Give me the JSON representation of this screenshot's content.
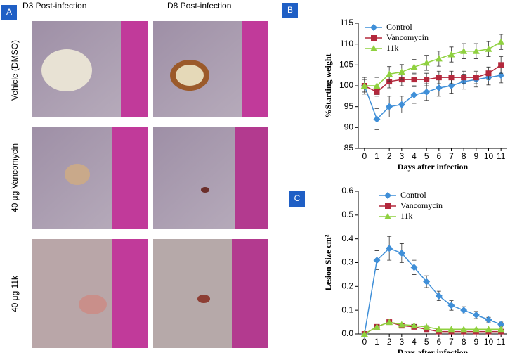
{
  "figure": {
    "panels": [
      "A",
      "B",
      "C"
    ],
    "columns": [
      "D3 Post-infection",
      "D8 Post-infection"
    ],
    "rows": [
      "Vehicle (DMSO)",
      "40 μg Vancomycin",
      "40 μg 11k"
    ]
  },
  "chart_data": [
    {
      "type": "line",
      "ylabel": "%Starting weight",
      "xlabel": "Days after infection",
      "x": [
        0,
        1,
        2,
        3,
        4,
        5,
        6,
        7,
        8,
        9,
        10,
        11
      ],
      "xlim": [
        -0.5,
        11.5
      ],
      "xticks": [
        0,
        1,
        2,
        3,
        4,
        5,
        6,
        7,
        8,
        9,
        10,
        11
      ],
      "ylim": [
        85,
        115
      ],
      "yticks": [
        85,
        90,
        95,
        100,
        105,
        110,
        115
      ],
      "legend": "upper left",
      "series": [
        {
          "name": "Control",
          "color": "#3f8fd8",
          "marker": "diamond",
          "values": [
            100,
            92,
            95,
            95.5,
            97.8,
            98.5,
            99.5,
            100,
            101,
            101.5,
            102,
            102.5
          ],
          "errors": [
            1.5,
            2.5,
            2.5,
            2,
            2,
            2,
            2,
            1.8,
            1.8,
            1.8,
            1.8,
            1.8
          ]
        },
        {
          "name": "Vancomycin",
          "color": "#b3283c",
          "marker": "square",
          "values": [
            100,
            98.5,
            101,
            101.5,
            101.5,
            101.5,
            102,
            102,
            102,
            102,
            103,
            105
          ],
          "errors": [
            1.5,
            1,
            1.5,
            1.5,
            1.5,
            1.5,
            1.5,
            1.5,
            1.5,
            1.5,
            1.5,
            2
          ]
        },
        {
          "name": "11k",
          "color": "#8fd13f",
          "marker": "triangle",
          "values": [
            100,
            100,
            102.8,
            103.3,
            104.5,
            105.5,
            106.5,
            107.5,
            108.3,
            108.3,
            108.8,
            110.5
          ],
          "errors": [
            2,
            2,
            1.8,
            1.8,
            1.8,
            1.8,
            1.8,
            1.8,
            1.8,
            1.8,
            1.8,
            1.8
          ]
        }
      ]
    },
    {
      "type": "line",
      "ylabel": "Lesion Size cm²",
      "xlabel": "Days after infection",
      "x": [
        0,
        1,
        2,
        3,
        4,
        5,
        6,
        7,
        8,
        9,
        10,
        11
      ],
      "xlim": [
        -0.5,
        11.5
      ],
      "xticks": [
        0,
        1,
        2,
        3,
        4,
        5,
        6,
        7,
        8,
        9,
        10,
        11
      ],
      "ylim": [
        0,
        0.6
      ],
      "yticks": [
        {
          "value": 0,
          "label": "0.0"
        },
        0.1,
        0.2,
        0.3,
        0.4,
        0.5,
        0.6
      ],
      "legend": "upper center",
      "series": [
        {
          "name": "Control",
          "color": "#3f8fd8",
          "marker": "diamond",
          "values": [
            0,
            0.31,
            0.36,
            0.34,
            0.28,
            0.22,
            0.16,
            0.12,
            0.1,
            0.08,
            0.06,
            0.04
          ],
          "errors": [
            0,
            0.04,
            0.05,
            0.04,
            0.03,
            0.025,
            0.02,
            0.02,
            0.015,
            0.015,
            0.01,
            0.01
          ]
        },
        {
          "name": "Vancomycin",
          "color": "#b3283c",
          "marker": "square",
          "values": [
            0,
            0.03,
            0.05,
            0.035,
            0.03,
            0.02,
            0.01,
            0.01,
            0.01,
            0.01,
            0.01,
            0.01
          ],
          "errors": [
            0,
            0.005,
            0.005,
            0.005,
            0.005,
            0.005,
            0.005,
            0.005,
            0.005,
            0.005,
            0.005,
            0.005
          ]
        },
        {
          "name": "11k",
          "color": "#8fd13f",
          "marker": "triangle",
          "values": [
            0,
            0.03,
            0.05,
            0.04,
            0.035,
            0.03,
            0.02,
            0.02,
            0.02,
            0.02,
            0.02,
            0.02
          ],
          "errors": [
            0,
            0.005,
            0.005,
            0.005,
            0.005,
            0.005,
            0.005,
            0.005,
            0.005,
            0.005,
            0.005,
            0.005
          ]
        }
      ]
    }
  ]
}
